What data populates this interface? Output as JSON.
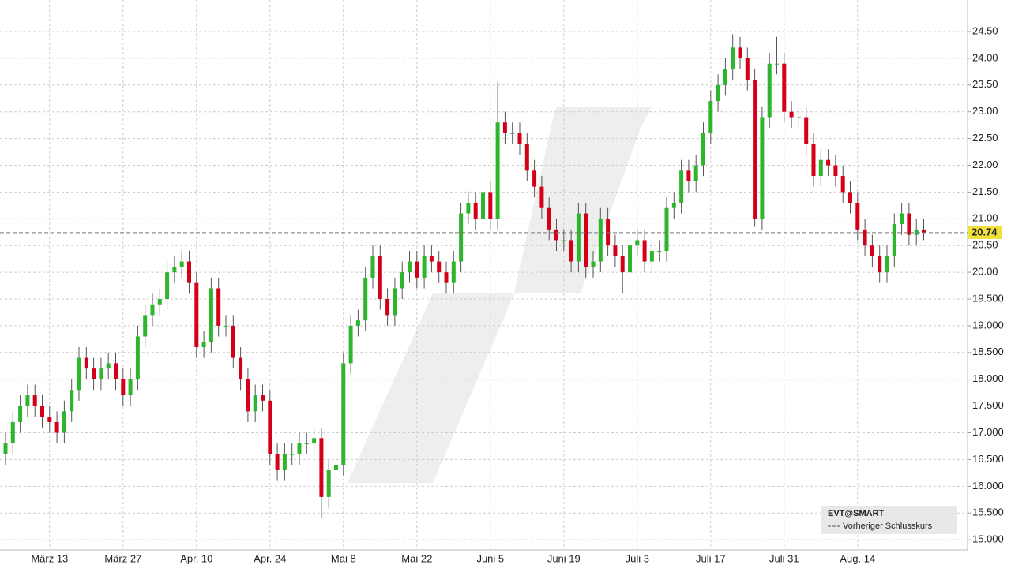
{
  "chart_data": {
    "type": "candlestick",
    "categories": [
      null,
      null,
      null,
      null,
      null,
      null,
      "März 13",
      null,
      null,
      null,
      null,
      null,
      null,
      null,
      null,
      null,
      "März 27",
      null,
      null,
      null,
      null,
      null,
      null,
      null,
      null,
      null,
      "Apr. 10",
      null,
      null,
      null,
      null,
      null,
      null,
      null,
      null,
      null,
      "Apr. 24",
      null,
      null,
      null,
      null,
      null,
      null,
      null,
      null,
      null,
      "Mai 8",
      null,
      null,
      null,
      null,
      null,
      null,
      null,
      null,
      null,
      "Mai 22",
      null,
      null,
      null,
      null,
      null,
      null,
      null,
      null,
      null,
      "Juni 5",
      null,
      null,
      null,
      null,
      null,
      null,
      null,
      null,
      null,
      "Juni 19",
      null,
      null,
      null,
      null,
      null,
      null,
      null,
      null,
      null,
      "Juli 3",
      null,
      null,
      null,
      null,
      null,
      null,
      null,
      null,
      null,
      "Juli 17",
      null,
      null,
      null,
      null,
      null,
      null,
      null,
      null,
      null,
      "Juli 31",
      null,
      null,
      null,
      null,
      null,
      null,
      null,
      null,
      null,
      "Aug. 14",
      null,
      null,
      null,
      null,
      null,
      null,
      null,
      null,
      null
    ],
    "open": [
      16.6,
      16.8,
      17.2,
      17.5,
      17.7,
      17.5,
      17.3,
      17.2,
      17.0,
      17.4,
      17.8,
      18.4,
      18.2,
      18.0,
      18.2,
      18.3,
      18.0,
      17.7,
      18.0,
      18.8,
      19.2,
      19.4,
      19.5,
      20.0,
      20.1,
      20.2,
      19.8,
      18.6,
      18.7,
      19.7,
      19.0,
      19.0,
      18.4,
      18.0,
      17.4,
      17.7,
      17.6,
      16.6,
      16.3,
      16.6,
      16.6,
      16.8,
      16.8,
      16.9,
      15.8,
      16.3,
      16.4,
      18.3,
      19.0,
      19.1,
      19.9,
      20.3,
      19.5,
      19.2,
      19.7,
      20.0,
      20.2,
      19.9,
      20.3,
      20.2,
      20.0,
      19.8,
      20.2,
      21.1,
      21.3,
      21.0,
      21.5,
      21.0,
      22.8,
      22.6,
      22.6,
      22.4,
      21.9,
      21.6,
      21.2,
      20.8,
      20.6,
      20.6,
      20.2,
      21.1,
      20.1,
      20.2,
      21.0,
      20.5,
      20.3,
      20.0,
      20.5,
      20.6,
      20.2,
      20.4,
      20.4,
      21.2,
      21.3,
      21.9,
      21.7,
      22.0,
      22.6,
      23.2,
      23.5,
      23.8,
      24.2,
      24.0,
      23.6,
      21.0,
      22.9,
      23.9,
      23.9,
      23.0,
      22.9,
      22.9,
      22.4,
      21.8,
      22.1,
      22.0,
      21.8,
      21.5,
      21.3,
      20.8,
      20.5,
      20.3,
      20.0,
      20.3,
      20.9,
      21.1,
      20.7,
      20.8
    ],
    "high": [
      17.0,
      17.4,
      17.7,
      17.9,
      17.9,
      17.7,
      17.5,
      17.4,
      17.6,
      18.0,
      18.6,
      18.6,
      18.4,
      18.4,
      18.5,
      18.5,
      18.2,
      18.2,
      19.0,
      19.4,
      19.6,
      19.7,
      20.2,
      20.3,
      20.4,
      20.4,
      20.0,
      18.9,
      19.9,
      19.9,
      19.2,
      19.2,
      18.6,
      18.2,
      17.9,
      17.9,
      17.8,
      16.8,
      16.8,
      16.8,
      17.0,
      17.0,
      17.1,
      17.1,
      16.5,
      16.6,
      18.5,
      19.2,
      19.3,
      20.1,
      20.5,
      20.5,
      19.7,
      19.9,
      20.2,
      20.4,
      20.4,
      20.5,
      20.5,
      20.4,
      20.2,
      20.4,
      21.3,
      21.5,
      21.5,
      21.7,
      21.7,
      23.55,
      23.0,
      22.8,
      22.8,
      22.6,
      22.1,
      21.8,
      21.4,
      21.0,
      20.8,
      20.8,
      21.3,
      21.3,
      20.4,
      21.2,
      21.2,
      20.7,
      20.5,
      20.7,
      20.8,
      20.8,
      20.6,
      20.6,
      21.4,
      21.5,
      22.1,
      22.1,
      22.2,
      22.8,
      23.4,
      23.7,
      24.0,
      24.45,
      24.4,
      24.2,
      23.8,
      23.1,
      24.1,
      24.4,
      24.1,
      23.2,
      23.1,
      23.1,
      22.6,
      22.3,
      22.3,
      22.2,
      22.0,
      21.7,
      21.5,
      21.0,
      20.7,
      20.5,
      20.5,
      21.1,
      21.3,
      21.3,
      21.0,
      21.0
    ],
    "low": [
      16.4,
      16.6,
      17.0,
      17.3,
      17.3,
      17.1,
      17.0,
      16.8,
      16.8,
      17.2,
      17.6,
      18.0,
      17.8,
      17.8,
      18.0,
      17.8,
      17.5,
      17.5,
      17.8,
      18.6,
      19.0,
      19.2,
      19.3,
      19.8,
      19.9,
      19.6,
      18.4,
      18.4,
      18.5,
      18.8,
      18.8,
      18.2,
      17.8,
      17.2,
      17.2,
      17.4,
      16.4,
      16.1,
      16.1,
      16.4,
      16.4,
      16.6,
      16.6,
      15.4,
      15.6,
      16.1,
      16.2,
      18.1,
      18.8,
      18.9,
      19.7,
      19.3,
      19.0,
      19.0,
      19.5,
      19.8,
      19.7,
      19.7,
      20.0,
      19.8,
      19.6,
      19.6,
      20.0,
      20.9,
      20.8,
      20.8,
      20.8,
      20.8,
      22.4,
      22.4,
      22.2,
      21.7,
      21.4,
      21.0,
      20.6,
      20.4,
      20.4,
      20.0,
      20.0,
      19.9,
      19.9,
      20.0,
      20.3,
      20.1,
      19.6,
      19.8,
      20.3,
      20.0,
      20.0,
      20.2,
      20.2,
      21.0,
      21.1,
      21.5,
      21.5,
      21.8,
      22.4,
      23.0,
      23.3,
      23.6,
      23.8,
      23.4,
      20.85,
      20.8,
      22.7,
      23.7,
      22.8,
      22.7,
      22.7,
      22.2,
      21.6,
      21.6,
      21.8,
      21.6,
      21.3,
      21.1,
      20.6,
      20.3,
      20.1,
      19.8,
      19.8,
      20.1,
      20.7,
      20.5,
      20.5,
      20.6
    ],
    "close": [
      16.8,
      17.2,
      17.5,
      17.7,
      17.5,
      17.3,
      17.2,
      17.0,
      17.4,
      17.8,
      18.4,
      18.2,
      18.0,
      18.2,
      18.3,
      18.0,
      17.7,
      18.0,
      18.8,
      19.2,
      19.4,
      19.5,
      20.0,
      20.1,
      20.2,
      19.8,
      18.6,
      18.7,
      19.7,
      19.0,
      19.0,
      18.4,
      18.0,
      17.4,
      17.7,
      17.6,
      16.6,
      16.3,
      16.6,
      16.6,
      16.8,
      16.8,
      16.9,
      15.8,
      16.3,
      16.4,
      18.3,
      19.0,
      19.1,
      19.9,
      20.3,
      19.5,
      19.2,
      19.7,
      20.0,
      20.2,
      19.9,
      20.3,
      20.2,
      20.0,
      19.8,
      20.2,
      21.1,
      21.3,
      21.0,
      21.5,
      21.0,
      22.8,
      22.6,
      22.6,
      22.4,
      21.9,
      21.6,
      21.2,
      20.8,
      20.6,
      20.6,
      20.2,
      21.1,
      20.1,
      20.2,
      21.0,
      20.5,
      20.3,
      20.0,
      20.5,
      20.6,
      20.2,
      20.4,
      20.4,
      21.2,
      21.3,
      21.9,
      21.7,
      22.0,
      22.6,
      23.2,
      23.5,
      23.8,
      24.2,
      24.0,
      23.6,
      21.0,
      22.9,
      23.9,
      23.9,
      23.0,
      22.9,
      22.9,
      22.4,
      21.8,
      22.1,
      22.0,
      21.8,
      21.5,
      21.3,
      20.8,
      20.5,
      20.3,
      20.0,
      20.3,
      20.9,
      21.1,
      20.7,
      20.8,
      20.74
    ],
    "up_color": "#2db52d",
    "down_color": "#d4001a",
    "ylim": [
      14.81,
      25.09
    ],
    "yticks": [
      {
        "value": 24.5,
        "label": "24.50"
      },
      {
        "value": 24,
        "label": "24.00"
      },
      {
        "value": 23.5,
        "label": "23.50"
      },
      {
        "value": 23,
        "label": "23.00"
      },
      {
        "value": 22.5,
        "label": "22.50"
      },
      {
        "value": 22,
        "label": "22.00"
      },
      {
        "value": 21.5,
        "label": "21.50"
      },
      {
        "value": 21,
        "label": "21.00"
      },
      {
        "value": 20.5,
        "label": "20.50"
      },
      {
        "value": 20,
        "label": "20.00"
      },
      {
        "value": 19.5,
        "label": "19.500"
      },
      {
        "value": 19,
        "label": "19.000"
      },
      {
        "value": 18.5,
        "label": "18.500"
      },
      {
        "value": 18,
        "label": "18.000"
      },
      {
        "value": 17.5,
        "label": "17.500"
      },
      {
        "value": 17,
        "label": "17.000"
      },
      {
        "value": 16.5,
        "label": "16.500"
      },
      {
        "value": 16,
        "label": "16.000"
      },
      {
        "value": 15.5,
        "label": "15.500"
      },
      {
        "value": 15,
        "label": "15.000"
      }
    ],
    "grid": true,
    "reference_line": {
      "name": "Vorheriger Schlusskurs",
      "value": 20.74,
      "color": "#f0e03a"
    },
    "legend": {
      "symbol": "EVT@SMART",
      "position": "lower right"
    }
  }
}
